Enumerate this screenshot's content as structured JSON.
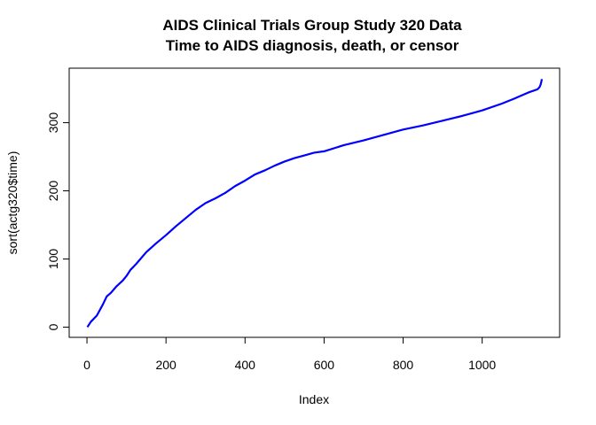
{
  "chart_data": {
    "type": "line",
    "title": "AIDS Clinical Trials Group Study 320 Data",
    "subtitle": "Time to AIDS diagnosis, death, or censor",
    "xlabel": "Index",
    "ylabel": "sort(actg320$time)",
    "xlim": [
      -45,
      1196
    ],
    "ylim": [
      -15,
      380
    ],
    "xticks": [
      0,
      200,
      400,
      600,
      800,
      1000
    ],
    "yticks": [
      0,
      100,
      200,
      300
    ],
    "series_color": "#0000ff",
    "grid": false,
    "legend": "none",
    "x": [
      1,
      10,
      25,
      40,
      50,
      60,
      75,
      90,
      100,
      110,
      125,
      150,
      175,
      200,
      225,
      250,
      275,
      300,
      325,
      350,
      375,
      400,
      425,
      450,
      475,
      500,
      525,
      550,
      575,
      600,
      650,
      700,
      750,
      800,
      850,
      900,
      950,
      1000,
      1050,
      1080,
      1100,
      1120,
      1130,
      1140,
      1145,
      1148,
      1150,
      1151
    ],
    "values": [
      0,
      8,
      17,
      33,
      45,
      50,
      60,
      68,
      75,
      84,
      93,
      110,
      123,
      135,
      148,
      160,
      172,
      182,
      189,
      197,
      207,
      215,
      224,
      230,
      237,
      243,
      248,
      252,
      256,
      258,
      267,
      274,
      282,
      290,
      296,
      303,
      310,
      318,
      328,
      335,
      340,
      345,
      347,
      349,
      352,
      356,
      361,
      364
    ]
  }
}
